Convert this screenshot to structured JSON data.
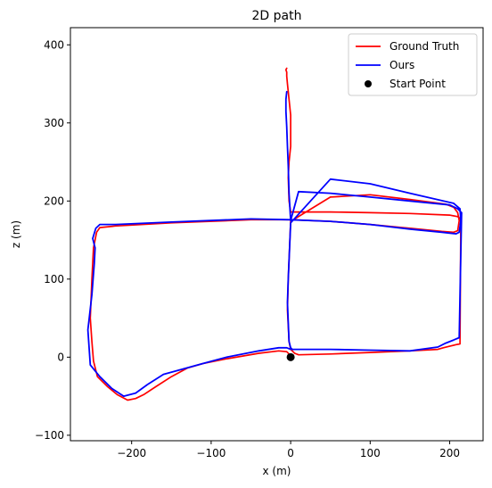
{
  "chart_data": {
    "type": "line",
    "title": "2D path",
    "xlabel": "x (m)",
    "ylabel": "z (m)",
    "xlim": [
      -277,
      242
    ],
    "ylim": [
      -107,
      422
    ],
    "xticks": [
      -200,
      -100,
      0,
      100,
      200
    ],
    "yticks": [
      -100,
      0,
      100,
      200,
      300,
      400
    ],
    "tick_labels_x": [
      "−200",
      "−100",
      "0",
      "100",
      "200"
    ],
    "tick_labels_y": [
      "−100",
      "0",
      "100",
      "200",
      "300",
      "400"
    ],
    "grid": false,
    "legend": "top-right",
    "series": [
      {
        "name": "Ground Truth",
        "color": "#ff0000",
        "x": [
          0,
          -2,
          -5,
          -15,
          -40,
          -80,
          -110,
          -130,
          -150,
          -170,
          -185,
          -195,
          -205,
          -218,
          -230,
          -243,
          -248,
          -250,
          -252,
          -250,
          -248,
          -244,
          -240,
          -220,
          -150,
          -50,
          0,
          50,
          100,
          150,
          190,
          205,
          210,
          212,
          210,
          205,
          195,
          150,
          100,
          50,
          0,
          -3,
          -4,
          -3,
          -2,
          0,
          2,
          5,
          10,
          50,
          100,
          150,
          185,
          192,
          200,
          208,
          213,
          214,
          210,
          200,
          150,
          100,
          50,
          10,
          0,
          -2,
          -3,
          -2,
          0,
          0,
          0,
          -2,
          -4,
          -5,
          -5,
          -6,
          -5
        ],
        "y": [
          0,
          4,
          7,
          8,
          5,
          -2,
          -8,
          -14,
          -25,
          -38,
          -48,
          -53,
          -55,
          -48,
          -38,
          -25,
          -5,
          20,
          50,
          100,
          140,
          160,
          166,
          168,
          172,
          176,
          176,
          174,
          170,
          165,
          161,
          160,
          162,
          175,
          185,
          192,
          196,
          202,
          208,
          205,
          174,
          100,
          60,
          40,
          20,
          10,
          8,
          5,
          3,
          4,
          6,
          8,
          10,
          12,
          14,
          16,
          17,
          177,
          180,
          182,
          184,
          185,
          186,
          186,
          186,
          200,
          230,
          250,
          270,
          290,
          310,
          330,
          350,
          360,
          365,
          368,
          370
        ]
      },
      {
        "name": "Ours",
        "color": "#0000ff",
        "x": [
          0,
          -5,
          -15,
          -40,
          -80,
          -110,
          -135,
          -160,
          -180,
          -195,
          -210,
          -225,
          -240,
          -252,
          -255,
          -250,
          -247,
          -246,
          -248,
          -249,
          -245,
          -240,
          -220,
          -150,
          -50,
          0,
          50,
          100,
          150,
          190,
          208,
          212,
          214,
          213,
          205,
          150,
          100,
          50,
          0,
          -3,
          -4,
          -3,
          -2,
          0,
          2,
          10,
          50,
          100,
          150,
          185,
          195,
          205,
          212,
          215,
          210,
          200,
          150,
          100,
          50,
          10,
          0,
          -2,
          -3,
          -4,
          -5,
          -6,
          -6,
          -5
        ],
        "y": [
          10,
          12,
          12,
          8,
          0,
          -8,
          -15,
          -22,
          -35,
          -46,
          -50,
          -40,
          -25,
          -10,
          35,
          80,
          120,
          140,
          148,
          152,
          165,
          170,
          170,
          173,
          177,
          176,
          174,
          170,
          164,
          160,
          158,
          160,
          175,
          190,
          197,
          210,
          222,
          228,
          172,
          100,
          70,
          45,
          20,
          12,
          10,
          10,
          10,
          9,
          8,
          13,
          18,
          22,
          25,
          185,
          190,
          195,
          200,
          205,
          210,
          212,
          175,
          210,
          245,
          270,
          295,
          315,
          330,
          340
        ]
      },
      {
        "name": "Start Point",
        "color": "#000000",
        "marker": "circle",
        "x": [
          0
        ],
        "y": [
          0
        ]
      }
    ]
  }
}
